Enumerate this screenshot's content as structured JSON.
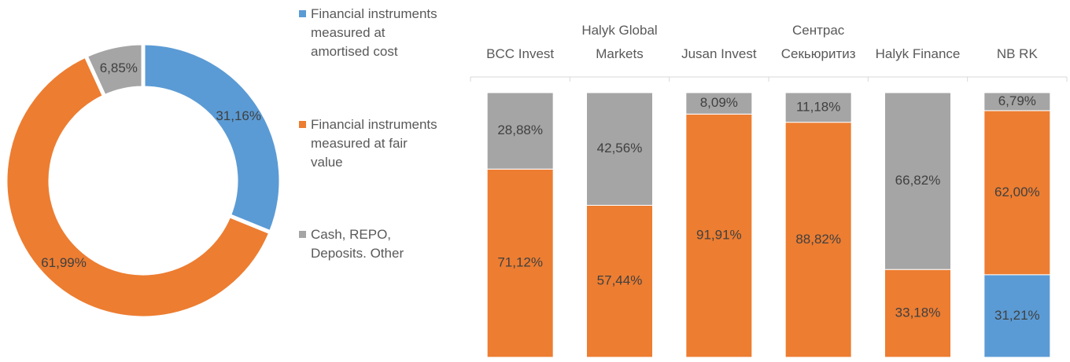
{
  "chart_data": [
    {
      "type": "donut",
      "categories": [
        "Financial instruments measured at amortised cost",
        "Financial instruments measured at fair value",
        "Cash, REPO, Deposits. Other"
      ],
      "values": [
        31.16,
        61.99,
        6.85
      ],
      "value_labels": [
        "31,16%",
        "61,99%",
        "6,85%"
      ],
      "colors": [
        "#5b9bd5",
        "#ed7d31",
        "#a5a5a5"
      ],
      "legend": "right"
    },
    {
      "type": "stacked_bar",
      "categories": [
        "BCC Invest",
        "Halyk Global Markets",
        "Jusan Invest",
        "Сентрас Секьюритиз",
        "Halyk Finance",
        "NB RK"
      ],
      "ylim": [
        0,
        100
      ],
      "series": [
        {
          "color": "#5b9bd5",
          "values": [
            null,
            null,
            null,
            null,
            null,
            31.21
          ],
          "value_labels": [
            null,
            null,
            null,
            null,
            null,
            "31,21%"
          ]
        },
        {
          "color": "#ed7d31",
          "values": [
            71.12,
            57.44,
            91.91,
            88.82,
            33.18,
            62.0
          ],
          "value_labels": [
            "71,12%",
            "57,44%",
            "91,91%",
            "88,82%",
            "33,18%",
            "62,00%"
          ]
        },
        {
          "color": "#a5a5a5",
          "values": [
            28.88,
            42.56,
            8.09,
            11.18,
            66.82,
            6.79
          ],
          "value_labels": [
            "28,88%",
            "42,56%",
            "8,09%",
            "11,18%",
            "66,82%",
            "6,79%"
          ]
        }
      ]
    }
  ]
}
